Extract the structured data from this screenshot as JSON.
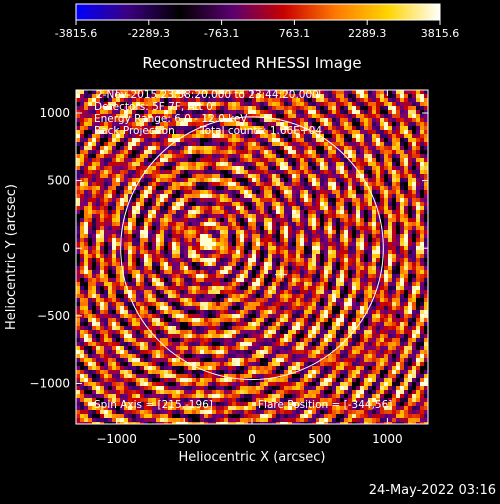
{
  "title": "Reconstructed RHESSI Image",
  "timestamp": "24-May-2022 03:16",
  "colorbar": {
    "ticks": [
      "-3815.6",
      "-2289.3",
      "-763.1",
      "763.1",
      "2289.3",
      "3815.6"
    ],
    "stops": [
      "#0000ff",
      "#3a0080",
      "#000000",
      "#5a0070",
      "#c80000",
      "#ff7a00",
      "#ffd400",
      "#ffffff"
    ]
  },
  "annotations": {
    "line1": "2-Nov-2015 23:38:20.000 to 23:44:20.000",
    "line2": "Detectors: 5F 7F, Att 0",
    "line3": "Energy Range: 6.0 - 12.0 keV",
    "line4a": "Back Projection",
    "line4b": "Total counts: 1.66E+04",
    "spin_axis": "Spin Axis = [215,-196]",
    "flare_position": "Flare Position = [-344,56]"
  },
  "chart_data": {
    "type": "heatmap",
    "title": "Reconstructed RHESSI Image",
    "xlabel": "Heliocentric X (arcsec)",
    "ylabel": "Heliocentric Y (arcsec)",
    "xlim": [
      -1300,
      1300
    ],
    "ylim": [
      -1300,
      1170
    ],
    "x_ticks": [
      {
        "value": -1000,
        "label": "−1000"
      },
      {
        "value": -500,
        "label": "−500"
      },
      {
        "value": 0,
        "label": "0"
      },
      {
        "value": 500,
        "label": "500"
      },
      {
        "value": 1000,
        "label": "1000"
      }
    ],
    "y_ticks": [
      {
        "value": 1000,
        "label": "1000"
      },
      {
        "value": 500,
        "label": "500"
      },
      {
        "value": 0,
        "label": "0"
      },
      {
        "value": -500,
        "label": "−500"
      },
      {
        "value": -1000,
        "label": "−1000"
      }
    ],
    "value_range": [
      -3815.6,
      3815.6
    ],
    "solar_limb": {
      "center": [
        0,
        0
      ],
      "radius": 970
    },
    "spin_axis_marker": [
      215,
      -196
    ],
    "flare_position": [
      -344,
      56
    ]
  }
}
